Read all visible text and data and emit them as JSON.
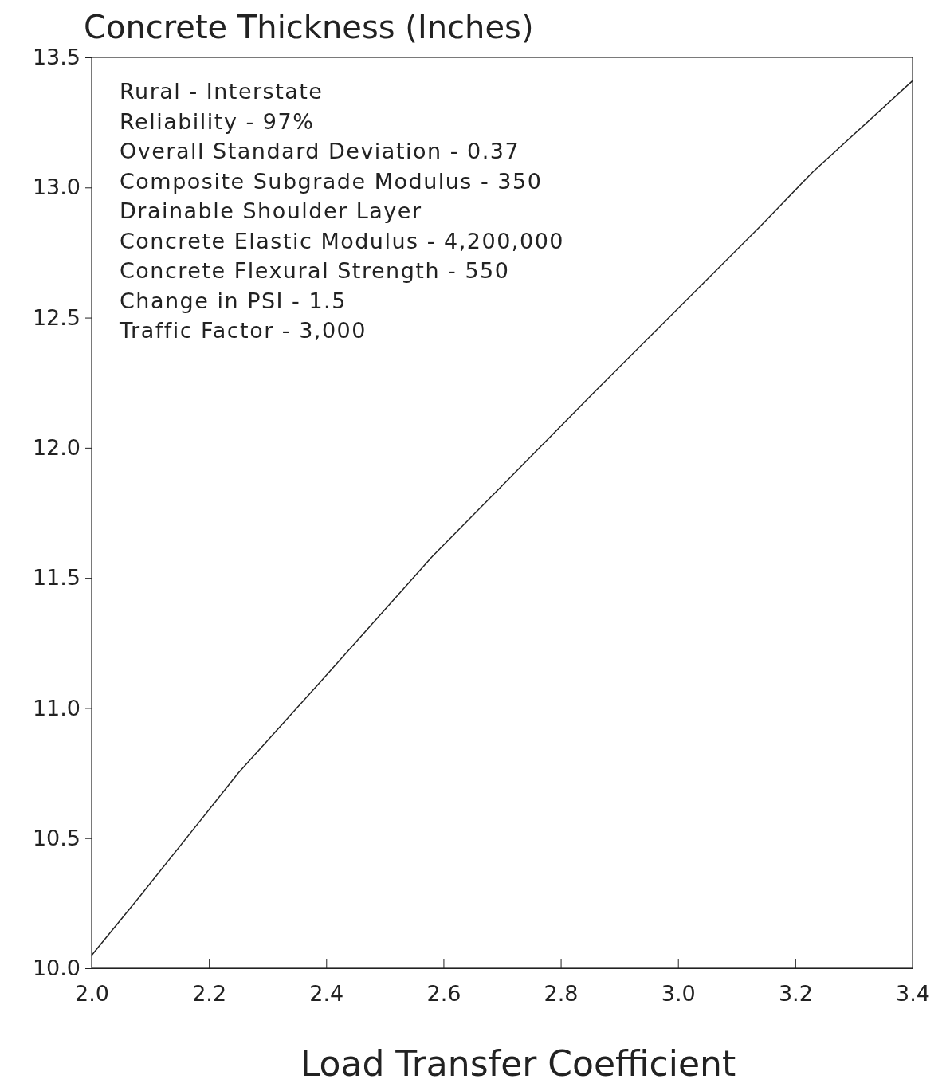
{
  "chart_data": {
    "type": "line",
    "ylabel": "Concrete Thickness (Inches)",
    "xlabel": "Load Transfer Coefficient",
    "x": [
      2.0,
      2.08,
      2.25,
      2.39,
      2.58,
      2.86,
      3.14,
      3.23,
      3.4
    ],
    "series": [
      {
        "color": "#222222",
        "values": [
          10.05,
          10.27,
          10.75,
          11.1,
          11.58,
          12.22,
          12.85,
          13.06,
          13.41
        ]
      }
    ],
    "xlim": [
      2.0,
      3.4
    ],
    "ylim": [
      10.0,
      13.5
    ],
    "xticks": [
      {
        "value": 2.0,
        "label": "2.0"
      },
      {
        "value": 2.2,
        "label": "2.2"
      },
      {
        "value": 2.4,
        "label": "2.4"
      },
      {
        "value": 2.6,
        "label": "2.6"
      },
      {
        "value": 2.8,
        "label": "2.8"
      },
      {
        "value": 3.0,
        "label": "3.0"
      },
      {
        "value": 3.2,
        "label": "3.2"
      },
      {
        "value": 3.4,
        "label": "3.4"
      }
    ],
    "yticks": [
      {
        "value": 10,
        "label": "10.0"
      },
      {
        "value": 10.5,
        "label": "10.5"
      },
      {
        "value": 11,
        "label": "11.0"
      },
      {
        "value": 11.5,
        "label": "11.5"
      },
      {
        "value": 12,
        "label": "12.0"
      },
      {
        "value": 12.5,
        "label": "12.5"
      },
      {
        "value": 13,
        "label": "13.0"
      },
      {
        "value": 13.5,
        "label": "13.5"
      }
    ],
    "annotations": [
      "Rural - Interstate",
      "Reliability - 97%",
      "Overall Standard Deviation - 0.37",
      "Composite Subgrade Modulus - 350",
      "Drainable Shoulder Layer",
      "Concrete Elastic Modulus - 4,200,000",
      "Concrete Flexural Strength - 550",
      "Change in PSI - 1.5",
      "Traffic Factor - 3,000"
    ],
    "grid": false,
    "marker": "none",
    "line_style": "solid"
  }
}
